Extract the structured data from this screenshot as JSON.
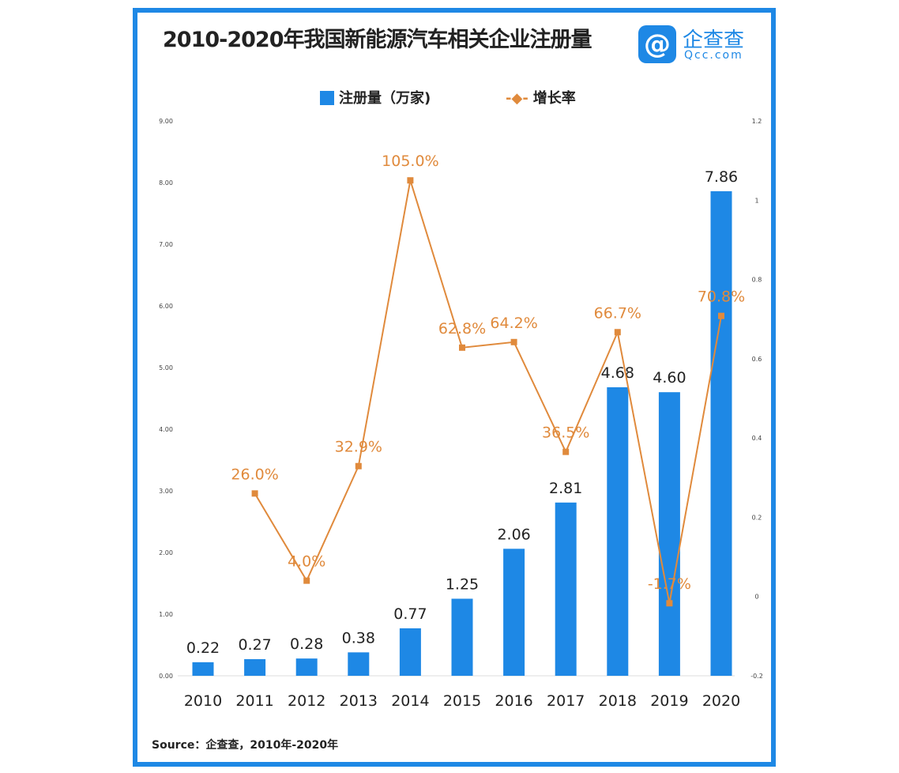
{
  "header": {
    "title": "2010-2020年我国新能源汽车相关企业注册量",
    "logo_name": "企查查",
    "logo_url": "Qcc.com"
  },
  "source": "Source：企查查，2010年-2020年",
  "colors": {
    "bar": "#1e88e5",
    "line": "#e08a3c",
    "frame": "#1e88e5"
  },
  "chart_data": {
    "type": "bar+line",
    "title": "2010-2020年我国新能源汽车相关企业注册量",
    "categories": [
      "2010",
      "2011",
      "2012",
      "2013",
      "2014",
      "2015",
      "2016",
      "2017",
      "2018",
      "2019",
      "2020"
    ],
    "series": [
      {
        "name": "注册量（万家)",
        "type": "bar",
        "axis": "left",
        "values": [
          0.22,
          0.27,
          0.28,
          0.38,
          0.77,
          1.25,
          2.06,
          2.81,
          4.68,
          4.6,
          7.86
        ],
        "labels": [
          "0.22",
          "0.27",
          "0.28",
          "0.38",
          "0.77",
          "1.25",
          "2.06",
          "2.81",
          "4.68",
          "4.60",
          "7.86"
        ]
      },
      {
        "name": "增长率",
        "type": "line",
        "axis": "right",
        "values": [
          null,
          0.26,
          0.04,
          0.329,
          1.05,
          0.628,
          0.642,
          0.365,
          0.667,
          -0.017,
          0.708
        ],
        "labels": [
          "",
          "26.0%",
          "4.0%",
          "32.9%",
          "105.0%",
          "62.8%",
          "64.2%",
          "36.5%",
          "66.7%",
          "-1.7%",
          "70.8%"
        ]
      }
    ],
    "left_axis": {
      "ylim": [
        0,
        9
      ],
      "ticks": [
        "0.00",
        "1.00",
        "2.00",
        "3.00",
        "4.00",
        "5.00",
        "6.00",
        "7.00",
        "8.00",
        "9.00"
      ]
    },
    "right_axis": {
      "ylim": [
        -0.2,
        1.2
      ],
      "ticks": [
        "-0.2",
        "0",
        "0.2",
        "0.4",
        "0.6",
        "0.8",
        "1",
        "1.2"
      ]
    },
    "legend": "top-center",
    "grid": false
  }
}
